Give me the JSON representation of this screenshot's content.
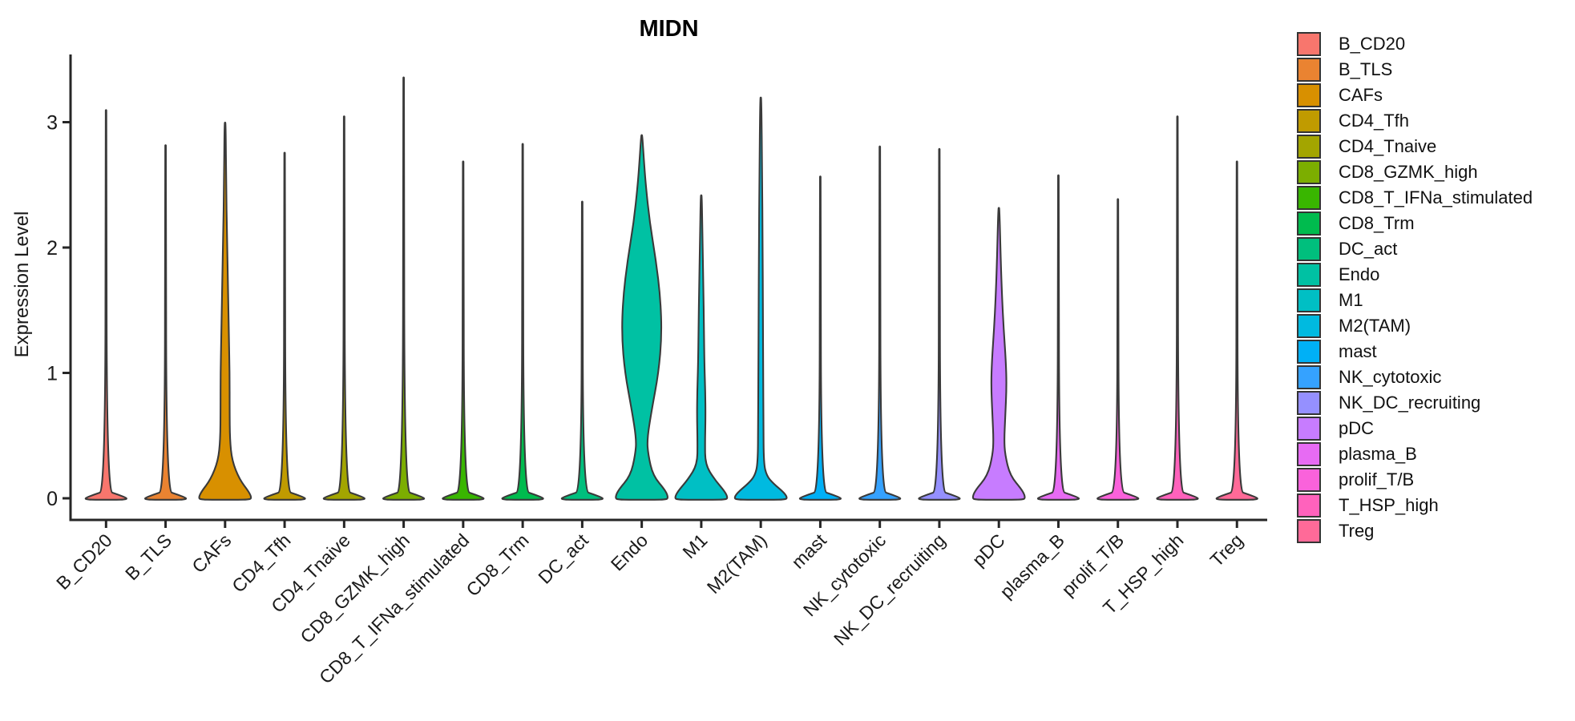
{
  "title": "MIDN",
  "y_axis": {
    "label": "Expression Level",
    "ticks": [
      "0",
      "1",
      "2",
      "3"
    ]
  },
  "x_axis": {
    "categories": [
      "B_CD20",
      "B_TLS",
      "CAFs",
      "CD4_Tfh",
      "CD4_Tnaive",
      "CD8_GZMK_high",
      "CD8_T_IFNa_stimulated",
      "CD8_Trm",
      "DC_act",
      "Endo",
      "M1",
      "M2(TAM)",
      "mast",
      "NK_cytotoxic",
      "NK_DC_recruiting",
      "pDC",
      "plasma_B",
      "prolif_T/B",
      "T_HSP_high",
      "Treg"
    ]
  },
  "legend": {
    "items": [
      {
        "label": "B_CD20",
        "color": "#F8766D"
      },
      {
        "label": "B_TLS",
        "color": "#EA8331"
      },
      {
        "label": "CAFs",
        "color": "#D89000"
      },
      {
        "label": "CD4_Tfh",
        "color": "#C09B00"
      },
      {
        "label": "CD4_Tnaive",
        "color": "#A3A500"
      },
      {
        "label": "CD8_GZMK_high",
        "color": "#7CAE00"
      },
      {
        "label": "CD8_T_IFNa_stimulated",
        "color": "#39B600"
      },
      {
        "label": "CD8_Trm",
        "color": "#00BB4E"
      },
      {
        "label": "DC_act",
        "color": "#00BF7D"
      },
      {
        "label": "Endo",
        "color": "#00C1A3"
      },
      {
        "label": "M1",
        "color": "#00BFC4"
      },
      {
        "label": "M2(TAM)",
        "color": "#00BAE0"
      },
      {
        "label": "mast",
        "color": "#00B0F6"
      },
      {
        "label": "NK_cytotoxic",
        "color": "#35A2FF"
      },
      {
        "label": "NK_DC_recruiting",
        "color": "#9590FF"
      },
      {
        "label": "pDC",
        "color": "#C77CFF"
      },
      {
        "label": "plasma_B",
        "color": "#E76BF3"
      },
      {
        "label": "prolif_T/B",
        "color": "#FA62DB"
      },
      {
        "label": "T_HSP_high",
        "color": "#FF62BC"
      },
      {
        "label": "Treg",
        "color": "#FF6A98"
      }
    ]
  },
  "colors": {
    "violin_outline": "#3A3A3A",
    "axis": "#262626",
    "text": "#1A1A1A"
  },
  "chart_data": {
    "type": "violin",
    "title": "MIDN",
    "xlabel": "",
    "ylabel": "Expression Level",
    "ylim": [
      0,
      3.5
    ],
    "yticks": [
      0,
      1,
      2,
      3
    ],
    "grid": false,
    "legend_position": "right",
    "categories": [
      "B_CD20",
      "B_TLS",
      "CAFs",
      "CD4_Tfh",
      "CD4_Tnaive",
      "CD8_GZMK_high",
      "CD8_T_IFNa_stimulated",
      "CD8_Trm",
      "DC_act",
      "Endo",
      "M1",
      "M2(TAM)",
      "mast",
      "NK_cytotoxic",
      "NK_DC_recruiting",
      "pDC",
      "plasma_B",
      "prolif_T/B",
      "T_HSP_high",
      "Treg"
    ],
    "series": [
      {
        "name": "B_CD20",
        "color": "#F8766D",
        "max_expression": 3.09,
        "filled": false,
        "profile": [
          [
            0,
            0.82
          ],
          [
            0.03,
            0.45
          ],
          [
            0.06,
            0.022
          ],
          [
            3.09,
            0.022
          ]
        ]
      },
      {
        "name": "B_TLS",
        "color": "#EA8331",
        "max_expression": 2.81,
        "filled": false,
        "profile": [
          [
            0,
            0.82
          ],
          [
            0.03,
            0.45
          ],
          [
            0.06,
            0.022
          ],
          [
            2.81,
            0.022
          ]
        ]
      },
      {
        "name": "CAFs",
        "color": "#D89000",
        "max_expression": 2.99,
        "filled": true,
        "profile": [
          [
            0,
            1
          ],
          [
            0.05,
            0.9
          ],
          [
            0.15,
            0.54
          ],
          [
            0.3,
            0.26
          ],
          [
            0.47,
            0.18
          ],
          [
            0.7,
            0.17
          ],
          [
            1.0,
            0.17
          ],
          [
            1.3,
            0.14
          ],
          [
            1.7,
            0.11
          ],
          [
            2.1,
            0.07
          ],
          [
            2.5,
            0.04
          ],
          [
            2.99,
            0.022
          ]
        ]
      },
      {
        "name": "CD4_Tfh",
        "color": "#C09B00",
        "max_expression": 2.75,
        "filled": false,
        "profile": [
          [
            0,
            0.82
          ],
          [
            0.03,
            0.45
          ],
          [
            0.06,
            0.022
          ],
          [
            2.75,
            0.022
          ]
        ]
      },
      {
        "name": "CD4_Tnaive",
        "color": "#A3A500",
        "max_expression": 3.04,
        "filled": false,
        "profile": [
          [
            0,
            0.82
          ],
          [
            0.03,
            0.45
          ],
          [
            0.06,
            0.022
          ],
          [
            3.04,
            0.022
          ]
        ]
      },
      {
        "name": "CD8_GZMK_high",
        "color": "#7CAE00",
        "max_expression": 3.35,
        "filled": false,
        "profile": [
          [
            0,
            0.82
          ],
          [
            0.03,
            0.45
          ],
          [
            0.06,
            0.022
          ],
          [
            3.35,
            0.022
          ]
        ]
      },
      {
        "name": "CD8_T_IFNa_stimulated",
        "color": "#39B600",
        "max_expression": 2.68,
        "filled": false,
        "profile": [
          [
            0,
            0.82
          ],
          [
            0.03,
            0.45
          ],
          [
            0.06,
            0.022
          ],
          [
            2.68,
            0.022
          ]
        ]
      },
      {
        "name": "CD8_Trm",
        "color": "#00BB4E",
        "max_expression": 2.82,
        "filled": false,
        "profile": [
          [
            0,
            0.82
          ],
          [
            0.03,
            0.45
          ],
          [
            0.06,
            0.022
          ],
          [
            2.82,
            0.022
          ]
        ]
      },
      {
        "name": "DC_act",
        "color": "#00BF7D",
        "max_expression": 2.36,
        "filled": false,
        "profile": [
          [
            0,
            0.82
          ],
          [
            0.03,
            0.45
          ],
          [
            0.06,
            0.022
          ],
          [
            2.36,
            0.022
          ]
        ]
      },
      {
        "name": "Endo",
        "color": "#00C1A3",
        "max_expression": 2.89,
        "filled": true,
        "profile": [
          [
            0,
            1
          ],
          [
            0.06,
            0.9
          ],
          [
            0.18,
            0.42
          ],
          [
            0.35,
            0.24
          ],
          [
            0.47,
            0.2
          ],
          [
            0.7,
            0.37
          ],
          [
            1.0,
            0.63
          ],
          [
            1.3,
            0.75
          ],
          [
            1.6,
            0.7
          ],
          [
            1.9,
            0.53
          ],
          [
            2.2,
            0.3
          ],
          [
            2.5,
            0.15
          ],
          [
            2.7,
            0.08
          ],
          [
            2.89,
            0.022
          ]
        ]
      },
      {
        "name": "M1",
        "color": "#00BFC4",
        "max_expression": 2.41,
        "filled": true,
        "profile": [
          [
            0,
            1
          ],
          [
            0.05,
            0.9
          ],
          [
            0.15,
            0.5
          ],
          [
            0.27,
            0.15
          ],
          [
            0.45,
            0.14
          ],
          [
            0.65,
            0.16
          ],
          [
            0.85,
            0.15
          ],
          [
            1.05,
            0.12
          ],
          [
            1.35,
            0.1
          ],
          [
            1.7,
            0.08
          ],
          [
            2.0,
            0.05
          ],
          [
            2.41,
            0.022
          ]
        ]
      },
      {
        "name": "M2(TAM)",
        "color": "#00BAE0",
        "max_expression": 3.19,
        "filled": true,
        "profile": [
          [
            0,
            1
          ],
          [
            0.04,
            0.9
          ],
          [
            0.12,
            0.46
          ],
          [
            0.18,
            0.22
          ],
          [
            0.28,
            0.11
          ],
          [
            0.6,
            0.1
          ],
          [
            1.0,
            0.09
          ],
          [
            1.5,
            0.08
          ],
          [
            2.0,
            0.07
          ],
          [
            2.6,
            0.05
          ],
          [
            3.19,
            0.022
          ]
        ]
      },
      {
        "name": "mast",
        "color": "#00B0F6",
        "max_expression": 2.56,
        "filled": false,
        "profile": [
          [
            0,
            0.82
          ],
          [
            0.03,
            0.45
          ],
          [
            0.06,
            0.022
          ],
          [
            2.56,
            0.022
          ]
        ]
      },
      {
        "name": "NK_cytotoxic",
        "color": "#35A2FF",
        "max_expression": 2.8,
        "filled": false,
        "profile": [
          [
            0,
            0.82
          ],
          [
            0.03,
            0.45
          ],
          [
            0.06,
            0.022
          ],
          [
            2.8,
            0.022
          ]
        ]
      },
      {
        "name": "NK_DC_recruiting",
        "color": "#9590FF",
        "max_expression": 2.78,
        "filled": false,
        "profile": [
          [
            0,
            0.82
          ],
          [
            0.03,
            0.45
          ],
          [
            0.06,
            0.022
          ],
          [
            2.78,
            0.022
          ]
        ]
      },
      {
        "name": "pDC",
        "color": "#C77CFF",
        "max_expression": 2.31,
        "filled": true,
        "profile": [
          [
            0,
            1
          ],
          [
            0.06,
            0.9
          ],
          [
            0.18,
            0.42
          ],
          [
            0.35,
            0.23
          ],
          [
            0.47,
            0.2
          ],
          [
            0.65,
            0.24
          ],
          [
            0.9,
            0.29
          ],
          [
            1.1,
            0.26
          ],
          [
            1.35,
            0.18
          ],
          [
            1.6,
            0.12
          ],
          [
            1.9,
            0.07
          ],
          [
            2.31,
            0.022
          ]
        ]
      },
      {
        "name": "plasma_B",
        "color": "#E76BF3",
        "max_expression": 2.57,
        "filled": false,
        "profile": [
          [
            0,
            0.82
          ],
          [
            0.03,
            0.45
          ],
          [
            0.06,
            0.022
          ],
          [
            2.57,
            0.022
          ]
        ]
      },
      {
        "name": "prolif_T/B",
        "color": "#FA62DB",
        "max_expression": 2.38,
        "filled": false,
        "profile": [
          [
            0,
            0.82
          ],
          [
            0.03,
            0.45
          ],
          [
            0.06,
            0.022
          ],
          [
            2.38,
            0.022
          ]
        ]
      },
      {
        "name": "T_HSP_high",
        "color": "#FF62BC",
        "max_expression": 3.04,
        "filled": false,
        "profile": [
          [
            0,
            0.82
          ],
          [
            0.03,
            0.45
          ],
          [
            0.06,
            0.022
          ],
          [
            3.04,
            0.022
          ]
        ]
      },
      {
        "name": "Treg",
        "color": "#FF6A98",
        "max_expression": 2.68,
        "filled": false,
        "profile": [
          [
            0,
            0.82
          ],
          [
            0.03,
            0.45
          ],
          [
            0.06,
            0.022
          ],
          [
            2.68,
            0.022
          ]
        ]
      }
    ]
  }
}
